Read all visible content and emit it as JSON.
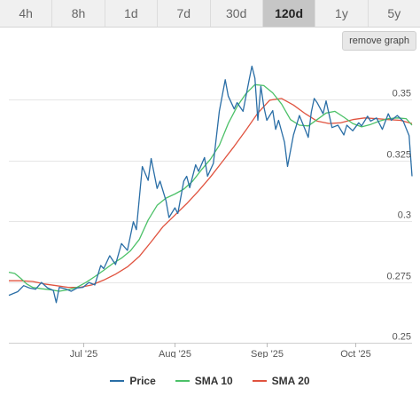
{
  "ranges": {
    "tabs": [
      {
        "label": "4h",
        "active": false
      },
      {
        "label": "8h",
        "active": false
      },
      {
        "label": "1d",
        "active": false
      },
      {
        "label": "7d",
        "active": false
      },
      {
        "label": "30d",
        "active": false
      },
      {
        "label": "120d",
        "active": true
      },
      {
        "label": "1y",
        "active": false
      },
      {
        "label": "5y",
        "active": false
      }
    ]
  },
  "controls": {
    "remove_graph_label": "remove graph"
  },
  "colors": {
    "price": "#2a6ea6",
    "sma10": "#4cc168",
    "sma20": "#e0533f",
    "grid": "#e6e6e6"
  },
  "chart_data": {
    "type": "line",
    "title": "",
    "xlabel": "",
    "ylabel": "",
    "ylim": [
      0.25,
      0.368
    ],
    "yticks": [
      0.25,
      0.275,
      0.3,
      0.325,
      0.35
    ],
    "ytick_labels": [
      "0.25",
      "0.275",
      "0.3",
      "0.325",
      "0.35"
    ],
    "x_range": [
      "2025-06-06",
      "2025-10-20"
    ],
    "xticks": [
      {
        "date": "2025-07-01",
        "label": "Jul '25"
      },
      {
        "date": "2025-08-01",
        "label": "Aug '25"
      },
      {
        "date": "2025-09-01",
        "label": "Sep '25"
      },
      {
        "date": "2025-10-01",
        "label": "Oct '25"
      }
    ],
    "grid": true,
    "legend_position": "bottom",
    "series": [
      {
        "name": "Price",
        "color": "#2a6ea6",
        "points": [
          [
            "2025-06-06",
            0.2695
          ],
          [
            "2025-06-09",
            0.271
          ],
          [
            "2025-06-11",
            0.2735
          ],
          [
            "2025-06-13",
            0.2725
          ],
          [
            "2025-06-15",
            0.272
          ],
          [
            "2025-06-17",
            0.2748
          ],
          [
            "2025-06-19",
            0.2726
          ],
          [
            "2025-06-21",
            0.2715
          ],
          [
            "2025-06-22",
            0.2665
          ],
          [
            "2025-06-23",
            0.2728
          ],
          [
            "2025-06-25",
            0.2722
          ],
          [
            "2025-06-27",
            0.2712
          ],
          [
            "2025-06-29",
            0.2725
          ],
          [
            "2025-07-01",
            0.2728
          ],
          [
            "2025-07-03",
            0.2748
          ],
          [
            "2025-07-05",
            0.2738
          ],
          [
            "2025-07-07",
            0.2818
          ],
          [
            "2025-07-08",
            0.2805
          ],
          [
            "2025-07-10",
            0.2858
          ],
          [
            "2025-07-12",
            0.2822
          ],
          [
            "2025-07-14",
            0.2908
          ],
          [
            "2025-07-16",
            0.288
          ],
          [
            "2025-07-18",
            0.2998
          ],
          [
            "2025-07-19",
            0.2965
          ],
          [
            "2025-07-21",
            0.3225
          ],
          [
            "2025-07-23",
            0.3168
          ],
          [
            "2025-07-24",
            0.3258
          ],
          [
            "2025-07-26",
            0.3135
          ],
          [
            "2025-07-27",
            0.3165
          ],
          [
            "2025-07-29",
            0.3085
          ],
          [
            "2025-07-30",
            0.3015
          ],
          [
            "2025-08-01",
            0.3055
          ],
          [
            "2025-08-02",
            0.3032
          ],
          [
            "2025-08-04",
            0.3165
          ],
          [
            "2025-08-05",
            0.3185
          ],
          [
            "2025-08-06",
            0.3138
          ],
          [
            "2025-08-08",
            0.3232
          ],
          [
            "2025-08-09",
            0.3205
          ],
          [
            "2025-08-11",
            0.3262
          ],
          [
            "2025-08-12",
            0.3185
          ],
          [
            "2025-08-14",
            0.3238
          ],
          [
            "2025-08-16",
            0.3452
          ],
          [
            "2025-08-18",
            0.3582
          ],
          [
            "2025-08-19",
            0.3515
          ],
          [
            "2025-08-21",
            0.3462
          ],
          [
            "2025-08-22",
            0.3488
          ],
          [
            "2025-08-24",
            0.3452
          ],
          [
            "2025-08-26",
            0.3578
          ],
          [
            "2025-08-27",
            0.3638
          ],
          [
            "2025-08-28",
            0.3588
          ],
          [
            "2025-08-29",
            0.3415
          ],
          [
            "2025-08-30",
            0.3555
          ],
          [
            "2025-08-31",
            0.3472
          ],
          [
            "2025-09-01",
            0.3415
          ],
          [
            "2025-09-03",
            0.3455
          ],
          [
            "2025-09-04",
            0.3378
          ],
          [
            "2025-09-05",
            0.3415
          ],
          [
            "2025-09-07",
            0.3325
          ],
          [
            "2025-09-08",
            0.3225
          ],
          [
            "2025-09-10",
            0.3355
          ],
          [
            "2025-09-12",
            0.3435
          ],
          [
            "2025-09-14",
            0.3375
          ],
          [
            "2025-09-15",
            0.3345
          ],
          [
            "2025-09-16",
            0.3448
          ],
          [
            "2025-09-17",
            0.3505
          ],
          [
            "2025-09-18",
            0.3488
          ],
          [
            "2025-09-20",
            0.3442
          ],
          [
            "2025-09-21",
            0.3495
          ],
          [
            "2025-09-23",
            0.3385
          ],
          [
            "2025-09-25",
            0.3395
          ],
          [
            "2025-09-27",
            0.3355
          ],
          [
            "2025-09-28",
            0.3395
          ],
          [
            "2025-09-30",
            0.3372
          ],
          [
            "2025-10-02",
            0.3405
          ],
          [
            "2025-10-03",
            0.3392
          ],
          [
            "2025-10-05",
            0.3432
          ],
          [
            "2025-10-06",
            0.3412
          ],
          [
            "2025-10-08",
            0.3425
          ],
          [
            "2025-10-10",
            0.3378
          ],
          [
            "2025-10-12",
            0.3442
          ],
          [
            "2025-10-13",
            0.3415
          ],
          [
            "2025-10-15",
            0.3435
          ],
          [
            "2025-10-17",
            0.3412
          ],
          [
            "2025-10-19",
            0.3352
          ],
          [
            "2025-10-20",
            0.3185
          ]
        ]
      },
      {
        "name": "SMA 10",
        "color": "#4cc168",
        "points": [
          [
            "2025-06-06",
            0.279
          ],
          [
            "2025-06-08",
            0.2785
          ],
          [
            "2025-06-10",
            0.2765
          ],
          [
            "2025-06-12",
            0.2742
          ],
          [
            "2025-06-14",
            0.2728
          ],
          [
            "2025-06-17",
            0.2722
          ],
          [
            "2025-06-20",
            0.2718
          ],
          [
            "2025-06-23",
            0.2712
          ],
          [
            "2025-06-26",
            0.2718
          ],
          [
            "2025-06-29",
            0.2728
          ],
          [
            "2025-07-02",
            0.2748
          ],
          [
            "2025-07-05",
            0.2772
          ],
          [
            "2025-07-08",
            0.2798
          ],
          [
            "2025-07-11",
            0.2825
          ],
          [
            "2025-07-14",
            0.2848
          ],
          [
            "2025-07-17",
            0.2878
          ],
          [
            "2025-07-20",
            0.2925
          ],
          [
            "2025-07-23",
            0.3005
          ],
          [
            "2025-07-26",
            0.3065
          ],
          [
            "2025-07-29",
            0.3095
          ],
          [
            "2025-08-01",
            0.3112
          ],
          [
            "2025-08-04",
            0.3132
          ],
          [
            "2025-08-07",
            0.3165
          ],
          [
            "2025-08-10",
            0.3212
          ],
          [
            "2025-08-13",
            0.3255
          ],
          [
            "2025-08-16",
            0.3312
          ],
          [
            "2025-08-19",
            0.3402
          ],
          [
            "2025-08-22",
            0.3472
          ],
          [
            "2025-08-25",
            0.3525
          ],
          [
            "2025-08-28",
            0.3562
          ],
          [
            "2025-08-31",
            0.3558
          ],
          [
            "2025-09-03",
            0.3528
          ],
          [
            "2025-09-06",
            0.3482
          ],
          [
            "2025-09-09",
            0.3418
          ],
          [
            "2025-09-12",
            0.3395
          ],
          [
            "2025-09-15",
            0.3392
          ],
          [
            "2025-09-18",
            0.3418
          ],
          [
            "2025-09-21",
            0.3445
          ],
          [
            "2025-09-24",
            0.3452
          ],
          [
            "2025-09-27",
            0.3428
          ],
          [
            "2025-09-30",
            0.3402
          ],
          [
            "2025-10-03",
            0.3388
          ],
          [
            "2025-10-06",
            0.3398
          ],
          [
            "2025-10-09",
            0.3412
          ],
          [
            "2025-10-12",
            0.3422
          ],
          [
            "2025-10-15",
            0.3425
          ],
          [
            "2025-10-18",
            0.3422
          ],
          [
            "2025-10-20",
            0.3395
          ]
        ]
      },
      {
        "name": "SMA 20",
        "color": "#e0533f",
        "points": [
          [
            "2025-06-06",
            0.2755
          ],
          [
            "2025-06-10",
            0.2755
          ],
          [
            "2025-06-14",
            0.2752
          ],
          [
            "2025-06-18",
            0.2742
          ],
          [
            "2025-06-22",
            0.2735
          ],
          [
            "2025-06-26",
            0.2728
          ],
          [
            "2025-06-30",
            0.2728
          ],
          [
            "2025-07-04",
            0.2738
          ],
          [
            "2025-07-08",
            0.2758
          ],
          [
            "2025-07-12",
            0.2782
          ],
          [
            "2025-07-16",
            0.2812
          ],
          [
            "2025-07-20",
            0.2855
          ],
          [
            "2025-07-24",
            0.2915
          ],
          [
            "2025-07-28",
            0.2978
          ],
          [
            "2025-08-01",
            0.3025
          ],
          [
            "2025-08-05",
            0.3072
          ],
          [
            "2025-08-09",
            0.3125
          ],
          [
            "2025-08-13",
            0.3182
          ],
          [
            "2025-08-17",
            0.3245
          ],
          [
            "2025-08-21",
            0.3308
          ],
          [
            "2025-08-25",
            0.3375
          ],
          [
            "2025-08-29",
            0.3445
          ],
          [
            "2025-09-02",
            0.3498
          ],
          [
            "2025-09-06",
            0.3505
          ],
          [
            "2025-09-10",
            0.3478
          ],
          [
            "2025-09-14",
            0.3442
          ],
          [
            "2025-09-18",
            0.3412
          ],
          [
            "2025-09-22",
            0.3402
          ],
          [
            "2025-09-26",
            0.3405
          ],
          [
            "2025-09-30",
            0.3418
          ],
          [
            "2025-10-04",
            0.3425
          ],
          [
            "2025-10-08",
            0.3422
          ],
          [
            "2025-10-12",
            0.3418
          ],
          [
            "2025-10-16",
            0.3415
          ],
          [
            "2025-10-20",
            0.3402
          ]
        ]
      }
    ]
  }
}
